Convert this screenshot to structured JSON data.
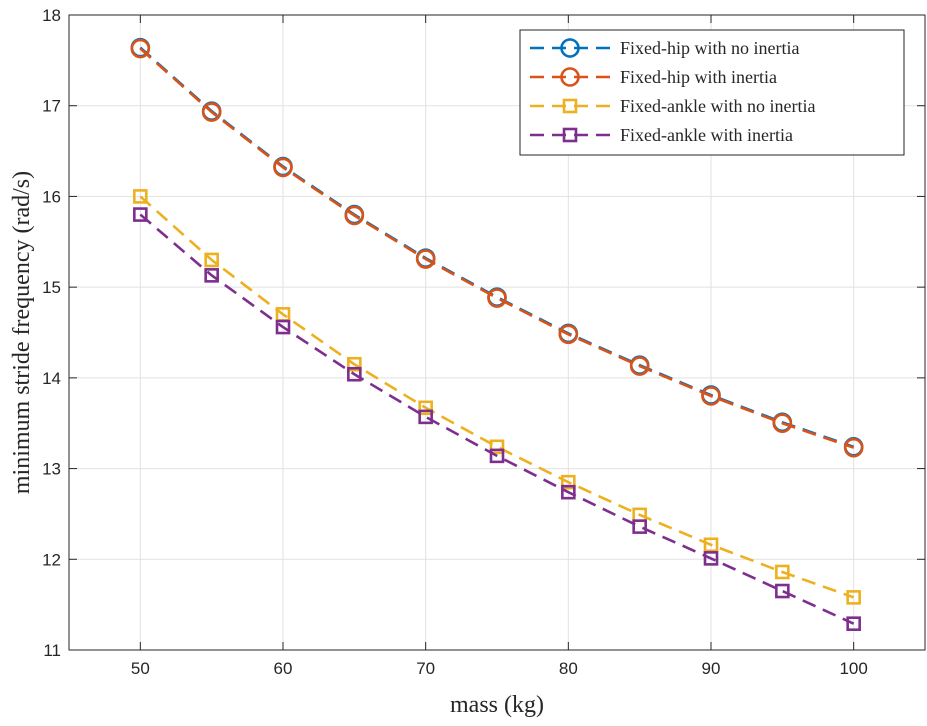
{
  "chart_data": {
    "type": "line",
    "title": "",
    "xlabel": "mass (kg)",
    "ylabel": "minimum stride frequency (rad/s)",
    "xlim": [
      45,
      105
    ],
    "ylim": [
      11,
      18
    ],
    "xticks": [
      50,
      60,
      70,
      80,
      90,
      100
    ],
    "yticks": [
      11,
      12,
      13,
      14,
      15,
      16,
      17,
      18
    ],
    "grid": true,
    "legend_position": "top-right",
    "x": [
      50,
      55,
      60,
      65,
      70,
      75,
      80,
      85,
      90,
      95,
      100
    ],
    "series": [
      {
        "name": "Fixed-hip with no inertia",
        "color": "#0072BD",
        "marker": "circle",
        "line_style": "dashed",
        "values": [
          17.64,
          16.94,
          16.33,
          15.8,
          15.32,
          14.89,
          14.49,
          14.14,
          13.81,
          13.51,
          13.24
        ]
      },
      {
        "name": "Fixed-hip with inertia",
        "color": "#D95319",
        "marker": "circle",
        "line_style": "dashed",
        "values": [
          17.63,
          16.93,
          16.32,
          15.79,
          15.31,
          14.88,
          14.48,
          14.13,
          13.8,
          13.5,
          13.23
        ]
      },
      {
        "name": "Fixed-ankle with no inertia",
        "color": "#EDB120",
        "marker": "square",
        "line_style": "dashed",
        "values": [
          16.0,
          15.3,
          14.7,
          14.15,
          13.67,
          13.24,
          12.85,
          12.49,
          12.16,
          11.86,
          11.58
        ]
      },
      {
        "name": "Fixed-ankle with inertia",
        "color": "#7E2F8E",
        "marker": "square",
        "line_style": "dashed",
        "values": [
          15.8,
          15.13,
          14.56,
          14.04,
          13.57,
          13.14,
          12.74,
          12.36,
          12.01,
          11.65,
          11.29
        ]
      }
    ]
  }
}
